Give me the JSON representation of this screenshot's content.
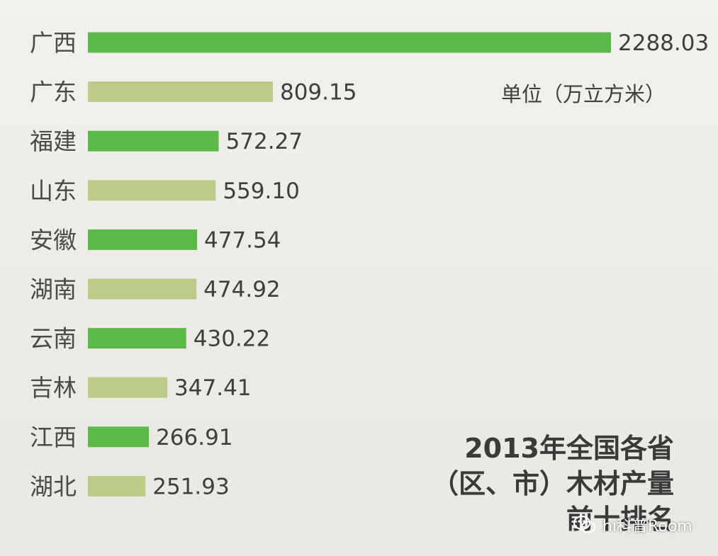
{
  "chart_data": {
    "type": "bar",
    "orientation": "horizontal",
    "categories": [
      "广西",
      "广东",
      "福建",
      "山东",
      "安徽",
      "湖南",
      "云南",
      "吉林",
      "江西",
      "湖北"
    ],
    "values": [
      2288.03,
      809.15,
      572.27,
      559.1,
      477.54,
      474.92,
      430.22,
      347.41,
      266.91,
      251.93
    ],
    "value_labels": [
      "2288.03",
      "809.15",
      "572.27",
      "559.10",
      "477.54",
      "474.92",
      "430.22",
      "347.41",
      "266.91",
      "251.93"
    ],
    "title_lines": [
      "2013年全国各省",
      "（区、市）木材产量",
      "前十排名"
    ],
    "unit_label": "单位（万立方米）",
    "xlabel": "",
    "ylabel": "",
    "xlim": [
      0,
      2288.03
    ],
    "grid": false,
    "legend": "none",
    "bar_colors": [
      "#5db84a",
      "#bccb88"
    ]
  },
  "watermark": {
    "text": "hi科普Room",
    "icon": "wechat-icon"
  }
}
